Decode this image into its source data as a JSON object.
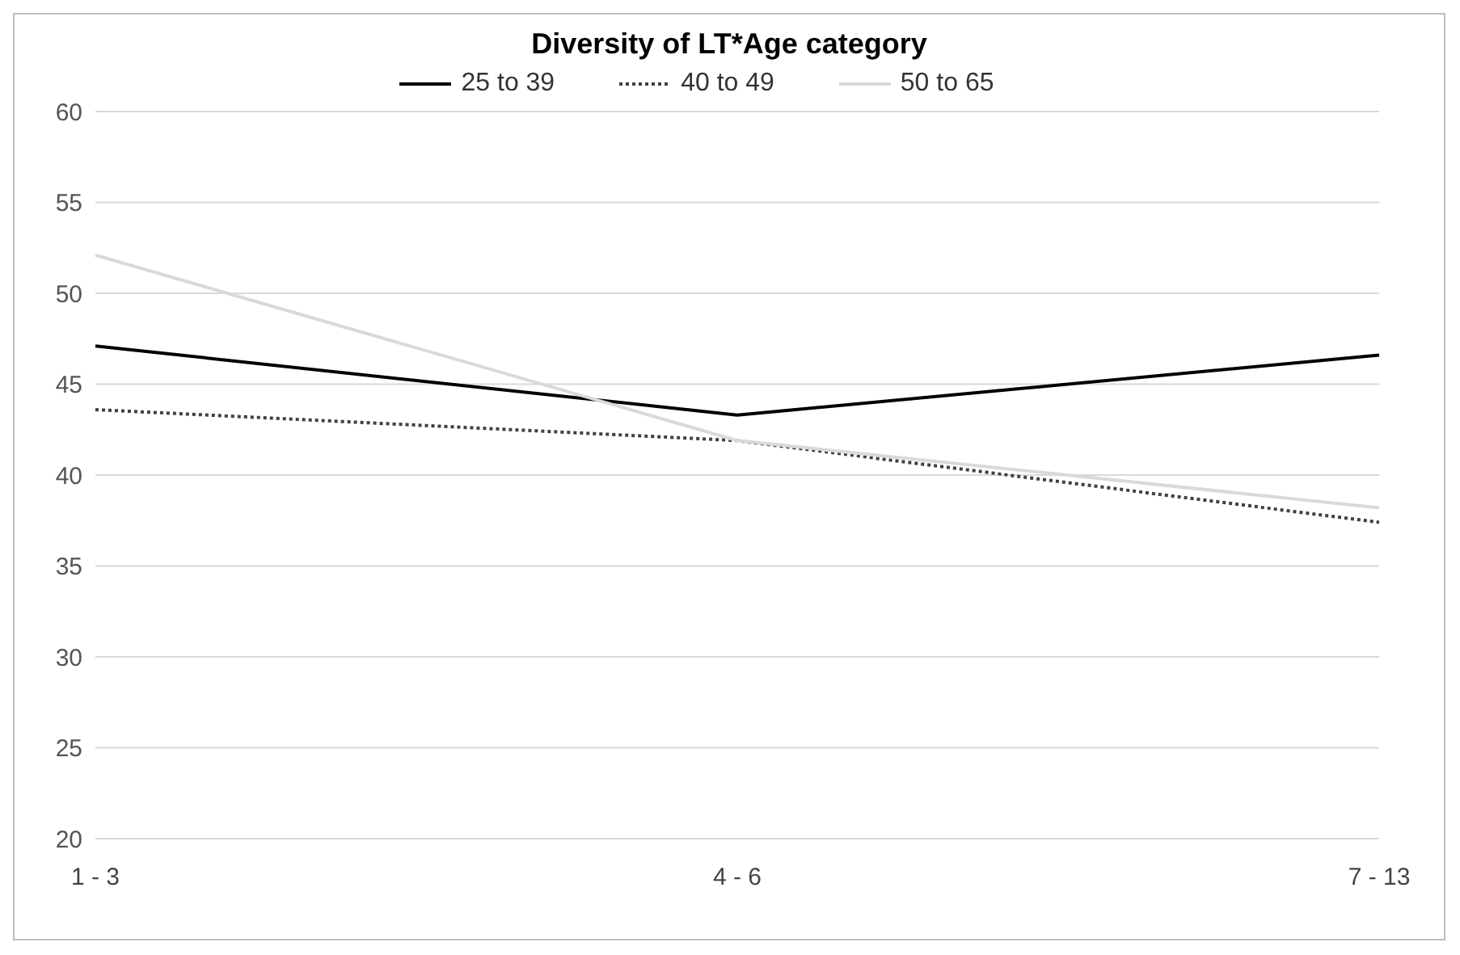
{
  "chart_data": {
    "type": "line",
    "title": "Diversity of LT*Age category",
    "categories": [
      "1 - 3",
      "4 - 6",
      "7 - 13"
    ],
    "series": [
      {
        "name": "25 to 39",
        "color": "#000000",
        "line_style": "solid",
        "values": [
          47.1,
          43.3,
          46.6
        ]
      },
      {
        "name": "40 to 49",
        "color": "#404040",
        "line_style": "dotted",
        "values": [
          43.6,
          41.9,
          37.4
        ]
      },
      {
        "name": "50 to 65",
        "color": "#d9d9d9",
        "line_style": "solid",
        "values": [
          52.1,
          41.9,
          38.2
        ]
      }
    ],
    "ylim": [
      20,
      60
    ],
    "yticks": [
      20,
      25,
      30,
      35,
      40,
      45,
      50,
      55,
      60
    ],
    "grid": "y",
    "legend": "top",
    "marker": "none"
  }
}
